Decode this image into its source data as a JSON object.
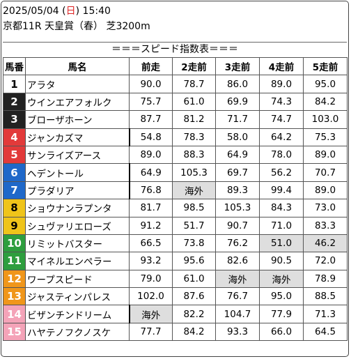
{
  "header": {
    "date": "2025/05/04",
    "dow": "日",
    "time": "15:40",
    "race": "京都11R 天皇賞（春） 芝3200m"
  },
  "table_title": "＝＝＝スピード指数表＝＝＝",
  "columns": [
    "馬番",
    "馬名",
    "前走",
    "2走前",
    "3走前",
    "4走前",
    "5走前"
  ],
  "gate_colors": {
    "white": "#ffffff",
    "black": "#222222",
    "red": "#e23a3a",
    "blue": "#1f68c9",
    "yellow": "#efc41a",
    "green": "#2e9e3e",
    "orange": "#f0961a",
    "pink": "#f4a3b8"
  },
  "rows": [
    {
      "no": "1",
      "name": "アラタ",
      "vals": [
        "90.0",
        "78.7",
        "86.0",
        "89.0",
        "95.0"
      ],
      "gate": "white",
      "shade": []
    },
    {
      "no": "2",
      "name": "ウインエアフォルク",
      "vals": [
        "75.7",
        "61.0",
        "69.9",
        "74.3",
        "84.2"
      ],
      "gate": "black",
      "shade": []
    },
    {
      "no": "3",
      "name": "ブローザホーン",
      "vals": [
        "87.7",
        "81.2",
        "71.7",
        "74.7",
        "103.0"
      ],
      "gate": "black",
      "shade": []
    },
    {
      "no": "4",
      "name": "ジャンカズマ",
      "vals": [
        "54.8",
        "78.3",
        "58.0",
        "64.2",
        "75.3"
      ],
      "gate": "red",
      "shade": []
    },
    {
      "no": "5",
      "name": "サンライズアース",
      "vals": [
        "89.0",
        "88.3",
        "64.9",
        "78.0",
        "89.0"
      ],
      "gate": "red",
      "shade": []
    },
    {
      "no": "6",
      "name": "ヘデントール",
      "vals": [
        "64.9",
        "105.3",
        "69.7",
        "56.2",
        "70.7"
      ],
      "gate": "blue",
      "shade": []
    },
    {
      "no": "7",
      "name": "プラダリア",
      "vals": [
        "76.8",
        "海外",
        "89.3",
        "99.4",
        "89.0"
      ],
      "gate": "blue",
      "shade": [
        1
      ]
    },
    {
      "no": "8",
      "name": "ショウナンラプンタ",
      "vals": [
        "81.7",
        "98.5",
        "105.3",
        "84.3",
        "73.0"
      ],
      "gate": "yellow",
      "shade": []
    },
    {
      "no": "9",
      "name": "シュヴァリエローズ",
      "vals": [
        "91.2",
        "51.7",
        "90.7",
        "71.0",
        "83.3"
      ],
      "gate": "yellow",
      "shade": []
    },
    {
      "no": "10",
      "name": "リミットバスター",
      "vals": [
        "66.5",
        "73.8",
        "76.2",
        "51.0",
        "46.2"
      ],
      "gate": "green",
      "shade": [
        3,
        4
      ]
    },
    {
      "no": "11",
      "name": "マイネルエンペラー",
      "vals": [
        "93.2",
        "95.6",
        "82.6",
        "90.5",
        "72.0"
      ],
      "gate": "green",
      "shade": []
    },
    {
      "no": "12",
      "name": "ワープスピード",
      "vals": [
        "79.0",
        "61.0",
        "海外",
        "海外",
        "78.9"
      ],
      "gate": "orange",
      "shade": [
        2,
        3
      ]
    },
    {
      "no": "13",
      "name": "ジャスティンパレス",
      "vals": [
        "102.0",
        "87.6",
        "76.7",
        "95.0",
        "88.5"
      ],
      "gate": "orange",
      "shade": []
    },
    {
      "no": "14",
      "name": "ビザンチンドリーム",
      "vals": [
        "海外",
        "82.2",
        "104.7",
        "77.9",
        "71.3"
      ],
      "gate": "pink",
      "shade": [
        0
      ]
    },
    {
      "no": "15",
      "name": "ハヤテノフクノスケ",
      "vals": [
        "77.7",
        "84.2",
        "93.3",
        "66.0",
        "64.5"
      ],
      "gate": "pink",
      "shade": []
    }
  ]
}
